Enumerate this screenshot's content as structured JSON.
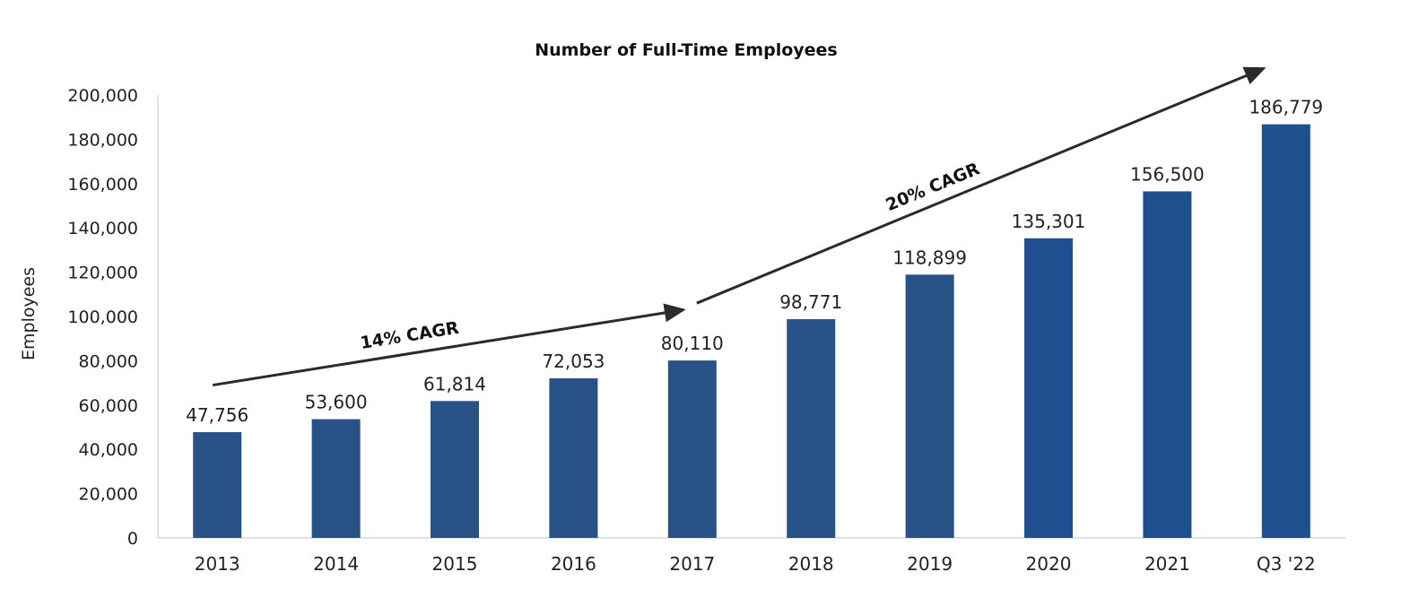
{
  "chart_data": {
    "type": "bar",
    "title": "Number of Full-Time Employees",
    "xlabel": "",
    "ylabel": "Employees",
    "ylim": [
      0,
      200000
    ],
    "yticks": [
      0,
      20000,
      40000,
      60000,
      80000,
      100000,
      120000,
      140000,
      160000,
      180000,
      200000
    ],
    "ytick_labels": [
      "0",
      "20,000",
      "40,000",
      "60,000",
      "80,000",
      "100,000",
      "120,000",
      "140,000",
      "160,000",
      "180,000",
      "200,000"
    ],
    "categories": [
      "2013",
      "2014",
      "2015",
      "2016",
      "2017",
      "2018",
      "2019",
      "2020",
      "2021",
      "Q3 '22"
    ],
    "values": [
      47756,
      53600,
      61814,
      72053,
      80110,
      98771,
      118899,
      135301,
      156500,
      186779
    ],
    "data_labels": [
      "47,756",
      "53,600",
      "61,814",
      "72,053",
      "80,110",
      "98,771",
      "118,899",
      "135,301",
      "156,500",
      "186,779"
    ],
    "grid": false,
    "bar_color": "#285185",
    "bar_color_recent": "#1f4f8f",
    "annotations": [
      {
        "text": "14% CAGR",
        "from": {
          "x": "2013",
          "y": 69000
        },
        "to": {
          "x": "2017",
          "y": 103000
        }
      },
      {
        "text": "20% CAGR",
        "from": {
          "x": "2017",
          "y": 106000
        },
        "to": {
          "x": "Q3 '22",
          "y": 212000
        }
      }
    ]
  }
}
